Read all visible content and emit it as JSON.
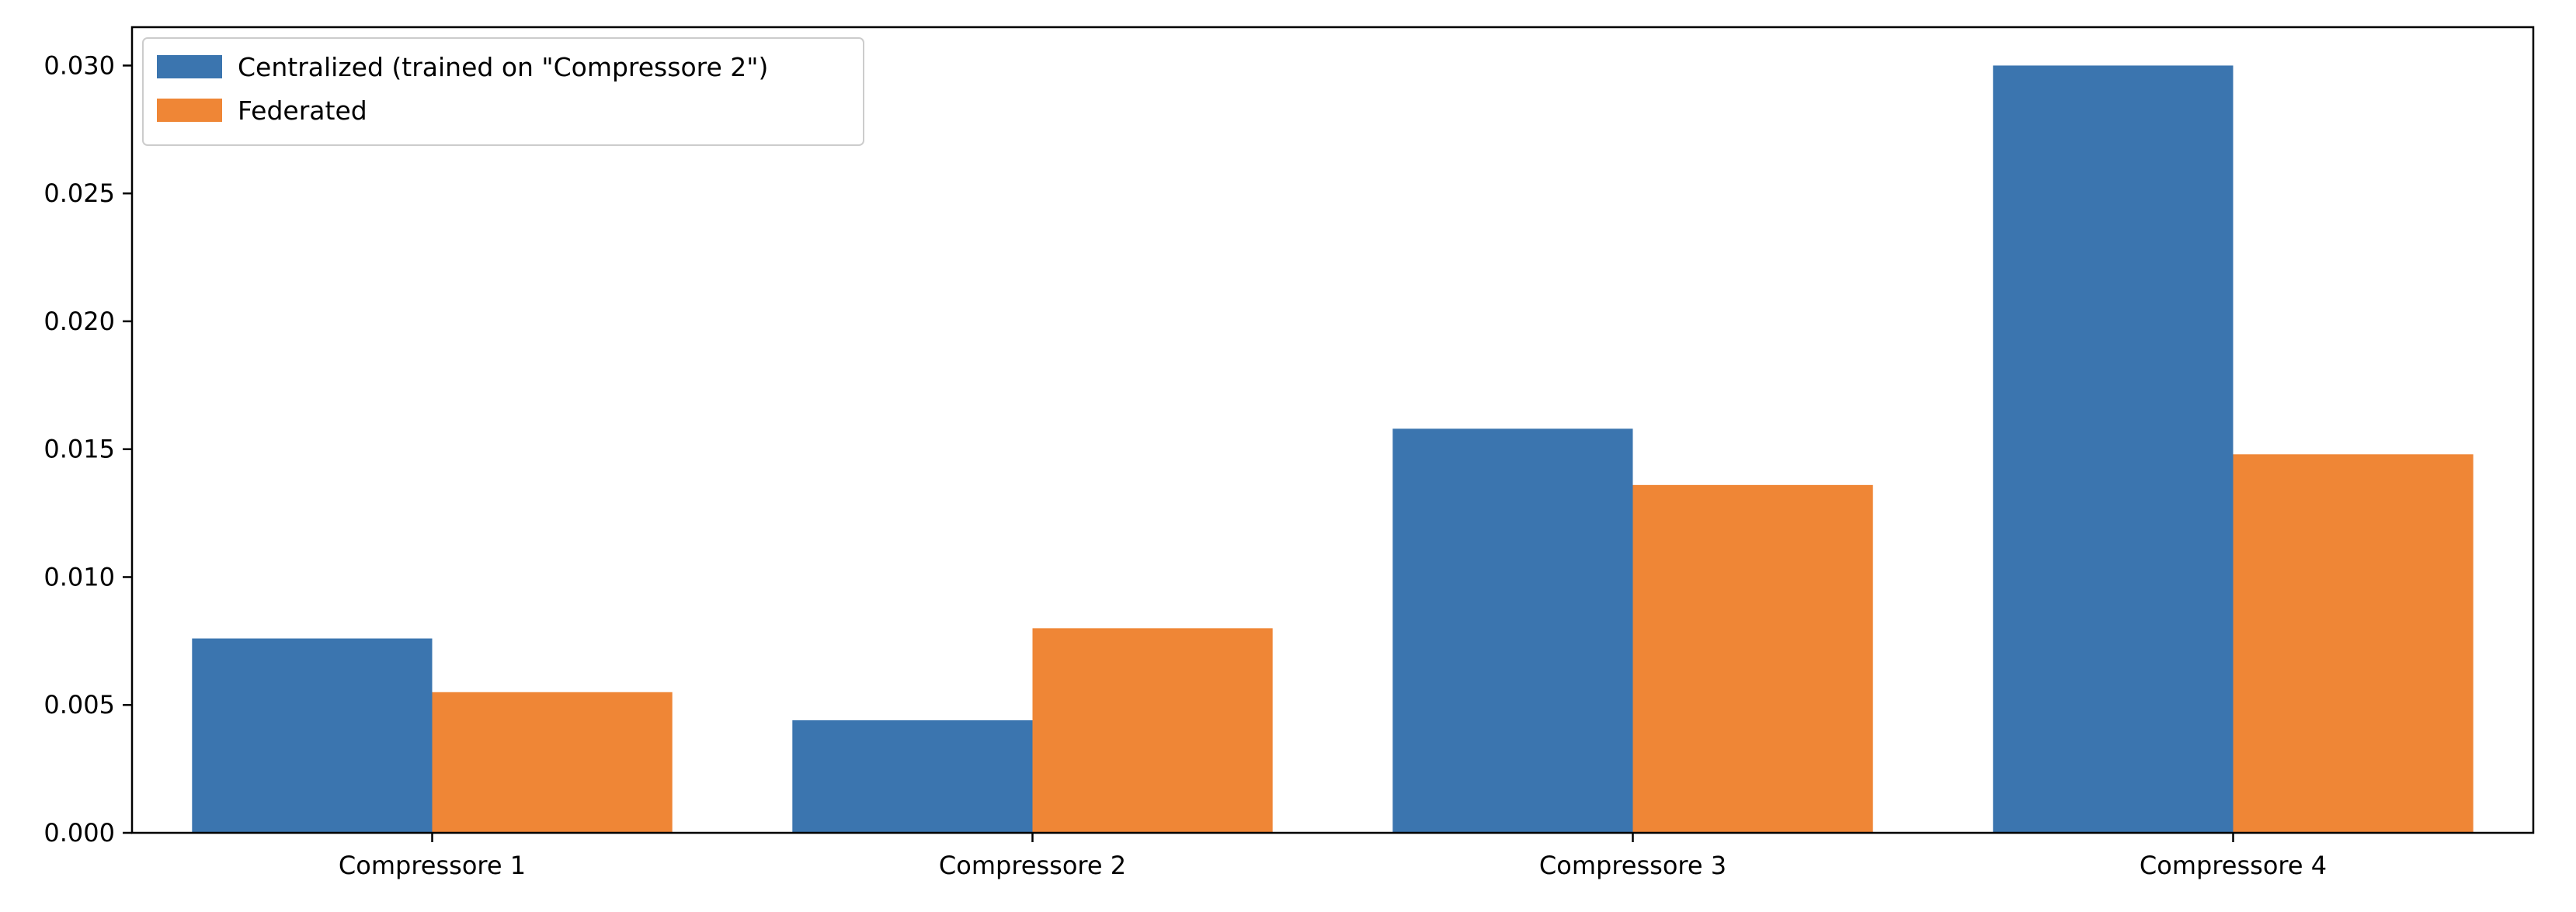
{
  "chart_data": {
    "type": "bar",
    "categories": [
      "Compressore 1",
      "Compressore 2",
      "Compressore 3",
      "Compressore 4"
    ],
    "series": [
      {
        "name": "Centralized (trained on \"Compressore 2\")",
        "color": "#3b75af",
        "values": [
          0.0076,
          0.0044,
          0.0158,
          0.03
        ]
      },
      {
        "name": "Federated",
        "color": "#ef8636",
        "values": [
          0.0055,
          0.008,
          0.0136,
          0.0148
        ]
      }
    ],
    "yticks": [
      0.0,
      0.005,
      0.01,
      0.015,
      0.02,
      0.025,
      0.03
    ],
    "ytick_labels": [
      "0.000",
      "0.005",
      "0.010",
      "0.015",
      "0.020",
      "0.025",
      "0.030"
    ],
    "ylim": [
      0,
      0.0315
    ],
    "grid": false,
    "legend_position": "top-left",
    "title": "",
    "xlabel": "",
    "ylabel": ""
  }
}
